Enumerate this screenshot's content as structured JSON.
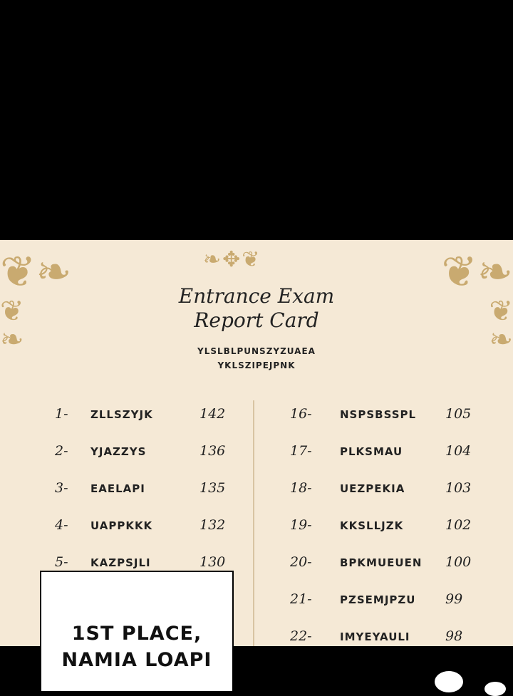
{
  "card": {
    "title_line1": "Entrance Exam",
    "title_line2": "Report Card",
    "subtitle_line1": "YLSLBLPUNSZYZUAEA",
    "subtitle_line2": "YKLSZIPEJPNK",
    "left_column": [
      {
        "rank": "1-",
        "name": "ZLLSZYJK",
        "score": "142"
      },
      {
        "rank": "2-",
        "name": "YJAZZYS",
        "score": "136"
      },
      {
        "rank": "3-",
        "name": "EAELAPI",
        "score": "135"
      },
      {
        "rank": "4-",
        "name": "UAPPKKK",
        "score": "132"
      },
      {
        "rank": "5-",
        "name": "KAZPSJLI",
        "score": "130"
      }
    ],
    "right_column": [
      {
        "rank": "16-",
        "name": "NSPSBSSPL",
        "score": "105"
      },
      {
        "rank": "17-",
        "name": "PLKSMAU",
        "score": "104"
      },
      {
        "rank": "18-",
        "name": "UEZPEKIA",
        "score": "103"
      },
      {
        "rank": "19-",
        "name": "KKSLLJZK",
        "score": "102"
      },
      {
        "rank": "20-",
        "name": "BPKMUEUEN",
        "score": "100"
      },
      {
        "rank": "21-",
        "name": "PZSEMJPZU",
        "score": "99"
      },
      {
        "rank": "22-",
        "name": "IMYEYAULI",
        "score": "98"
      }
    ]
  },
  "caption": {
    "line1": "1ST PLACE,",
    "line2": "NAMIA LOAPI"
  }
}
